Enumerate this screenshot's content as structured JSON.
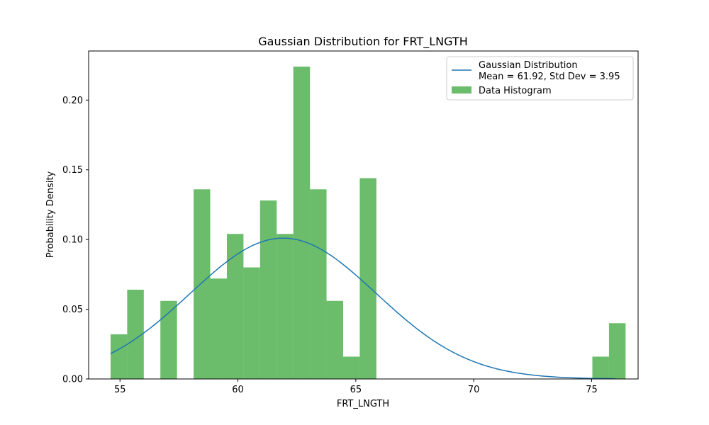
{
  "chart_data": {
    "type": "bar",
    "title": "Gaussian Distribution for FRT_LNGTH",
    "xlabel": "FRT_LNGTH",
    "ylabel": "Probability Density",
    "xlim": [
      53.67,
      76.97
    ],
    "ylim": [
      0,
      0.2352
    ],
    "xticks": [
      55,
      60,
      65,
      70,
      75
    ],
    "yticks": [
      0.0,
      0.05,
      0.1,
      0.15,
      0.2
    ],
    "xtick_labels": [
      "55",
      "60",
      "65",
      "70",
      "75"
    ],
    "ytick_labels": [
      "0.00",
      "0.05",
      "0.10",
      "0.15",
      "0.20"
    ],
    "grid": false,
    "legend_position": "top-right",
    "histogram": {
      "name": "Data Histogram",
      "color": "#2ca02c",
      "bin_start": 54.6,
      "bin_width": 0.7045,
      "densities": [
        0.032,
        0.064,
        0,
        0.056,
        0,
        0.136,
        0.072,
        0.104,
        0.08,
        0.128,
        0.104,
        0.224,
        0.136,
        0.056,
        0.016,
        0.144,
        0,
        0,
        0,
        0,
        0,
        0,
        0,
        0,
        0,
        0,
        0,
        0,
        0,
        0.016,
        0.04
      ]
    },
    "gaussian": {
      "name": "Gaussian Distribution\nMean = 61.92, Std Dev = 3.95",
      "color": "#1f77b4",
      "mean": 61.92,
      "std": 3.95,
      "x_range": [
        54.6,
        76.0
      ]
    }
  },
  "legend": {
    "gaussian_label_line1": "Gaussian Distribution",
    "gaussian_label_line2": "Mean = 61.92, Std Dev = 3.95",
    "histogram_label": "Data Histogram"
  }
}
